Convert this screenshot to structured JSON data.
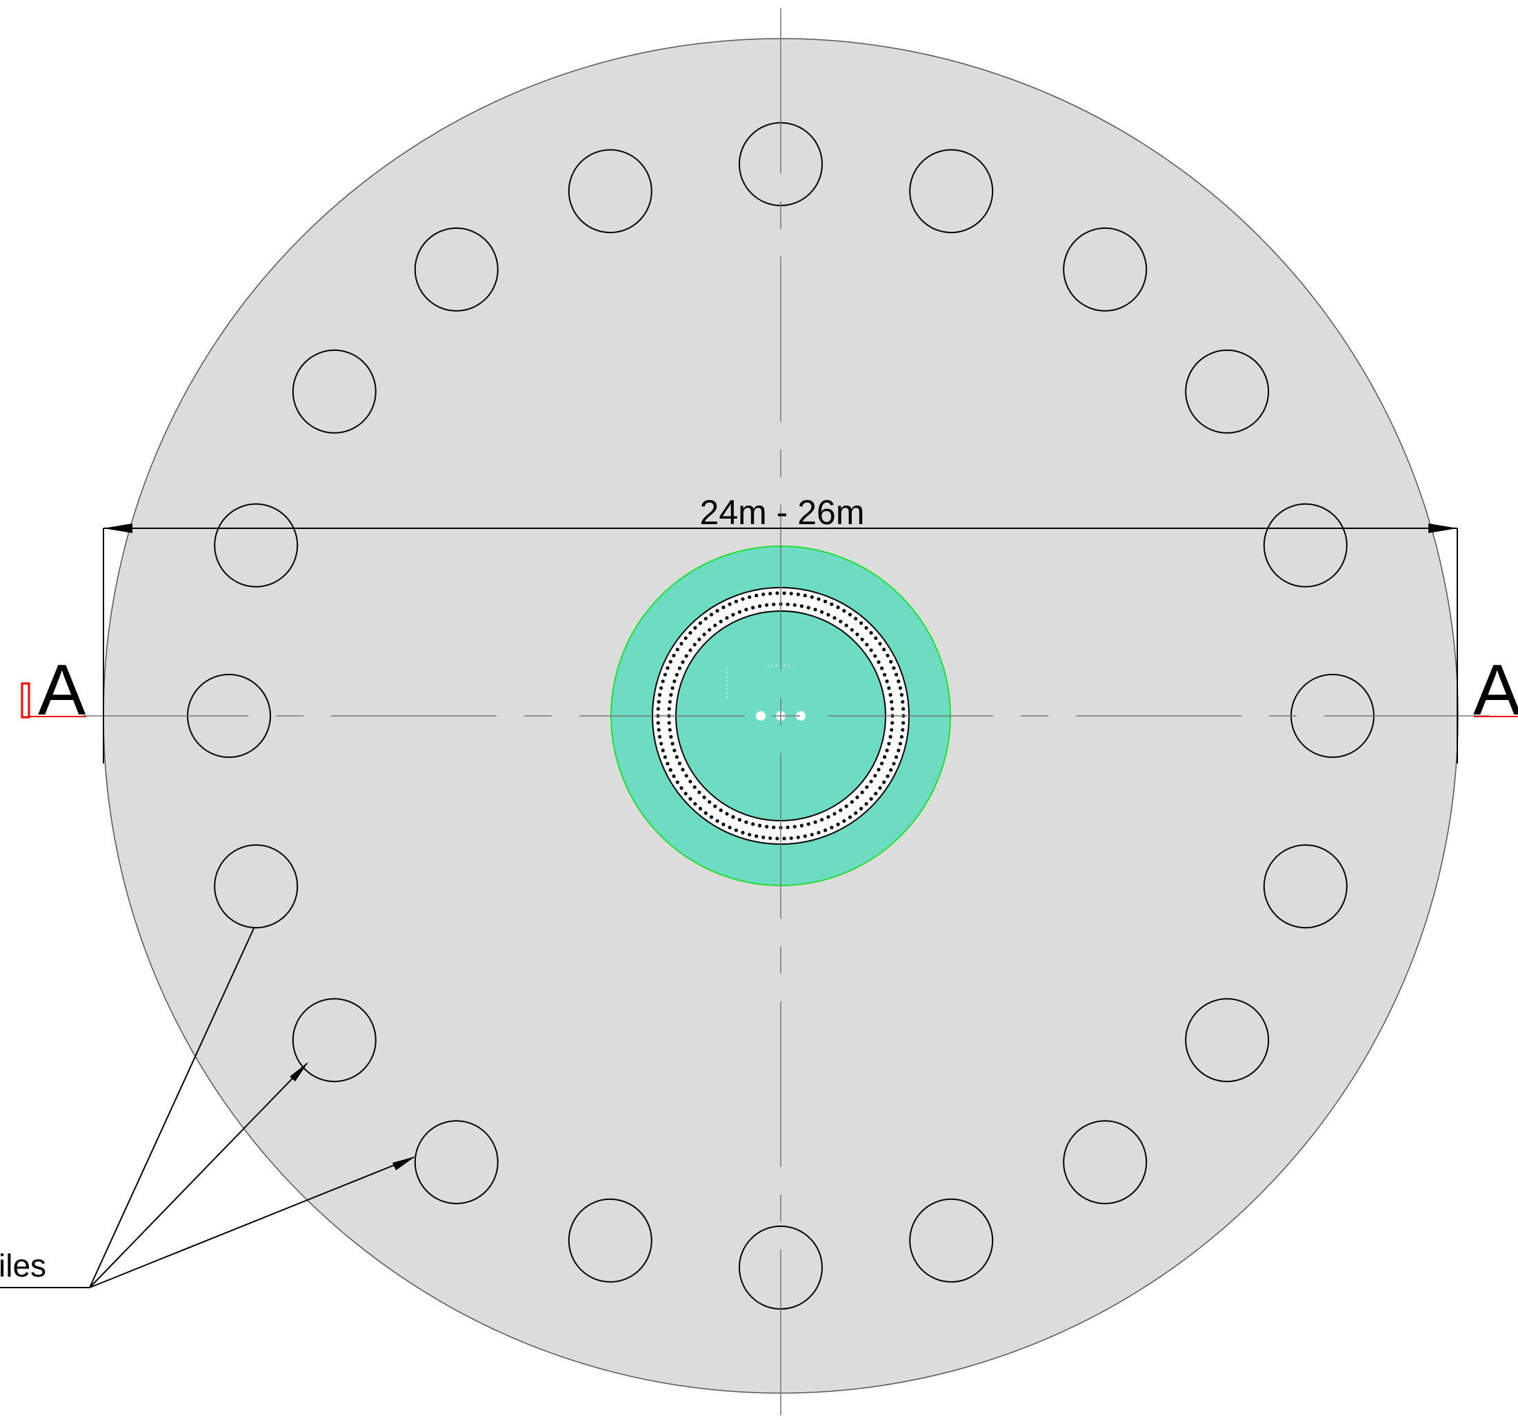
{
  "drawing": {
    "dimension_label": "24m - 26m",
    "section_label_left": "A",
    "section_label_right": "A",
    "callout_label": "iles",
    "pile_count": 20,
    "colors": {
      "foundation_fill": "#dcdcdc",
      "foundation_stroke": "#555555",
      "pedestal_fill": "#6edcc2",
      "pedestal_stroke": "#22dd33",
      "section_marker": "#ff0000",
      "centerline": "#777777",
      "line": "#000000"
    }
  }
}
